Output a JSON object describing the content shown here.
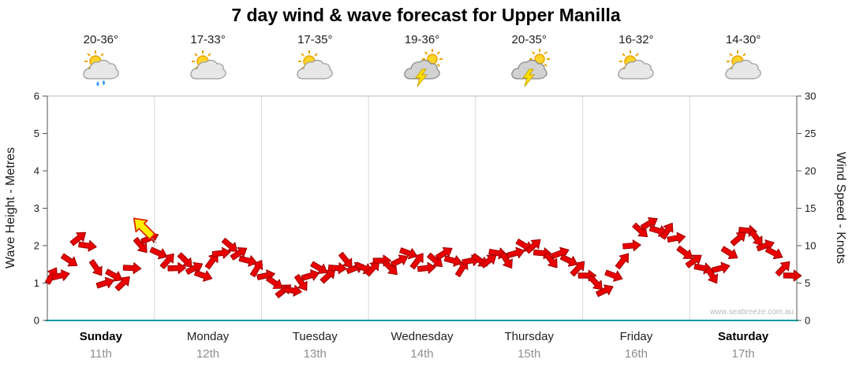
{
  "title": "7 day wind & wave forecast for Upper Manilla",
  "watermark": "www.seabreeze.com.au",
  "days": [
    {
      "name": "Sunday",
      "date": "11th",
      "temp": "20-36°",
      "icon": "sun-cloud-rain",
      "bold": true
    },
    {
      "name": "Monday",
      "date": "12th",
      "temp": "17-33°",
      "icon": "sun-cloud",
      "bold": false
    },
    {
      "name": "Tuesday",
      "date": "13th",
      "temp": "17-35°",
      "icon": "sun-cloud",
      "bold": false
    },
    {
      "name": "Wednesday",
      "date": "14th",
      "temp": "19-36°",
      "icon": "storm",
      "bold": false
    },
    {
      "name": "Thursday",
      "date": "15th",
      "temp": "20-35°",
      "icon": "storm",
      "bold": false
    },
    {
      "name": "Friday",
      "date": "16th",
      "temp": "16-32°",
      "icon": "sun-cloud",
      "bold": false
    },
    {
      "name": "Saturday",
      "date": "17th",
      "temp": "14-30°",
      "icon": "sun-cloud",
      "bold": true
    }
  ],
  "chart_data": {
    "type": "scatter",
    "title": "7 day wind & wave forecast for Upper Manilla",
    "marker": "wind-direction-arrow",
    "legend": "none",
    "grid": "vertical-day-boundaries",
    "x_total_hours": 168,
    "x_categories": [
      "Sunday 11th",
      "Monday 12th",
      "Tuesday 13th",
      "Wednesday 14th",
      "Thursday 15th",
      "Friday 16th",
      "Saturday 17th"
    ],
    "left_axis": {
      "label": "Wave Height - Metres",
      "min": 0,
      "max": 6,
      "tick_step": 1
    },
    "right_axis": {
      "label": "Wind Speed - Knots",
      "min": 0,
      "max": 30,
      "tick_step": 5
    },
    "axis_colors": {
      "bottom": "#009a9a",
      "side": "#555555",
      "grid": "#d7d7d7"
    },
    "series": [
      {
        "name": "Wind speed (knots)",
        "color": "#e80000",
        "outline_color": "#9e0000",
        "x_start_hour": 1,
        "x_step_hours": 2,
        "values": [
          6,
          6,
          8,
          11,
          10,
          7,
          5,
          6,
          5,
          7,
          10,
          11,
          9,
          8,
          7,
          8,
          7,
          6,
          8,
          9,
          10,
          9,
          8,
          7,
          6,
          5,
          4,
          4,
          5,
          6,
          7,
          6,
          7,
          8,
          7,
          7,
          7,
          8,
          7,
          8,
          9,
          8,
          7,
          8,
          9,
          8,
          7,
          8,
          8,
          8,
          9,
          8,
          9,
          10,
          10,
          9,
          8,
          9,
          8,
          7,
          6,
          5,
          4,
          6,
          8,
          10,
          12,
          13,
          12,
          12,
          11,
          9,
          8,
          7,
          6,
          7,
          9,
          11,
          12,
          11,
          10,
          9,
          7,
          6
        ],
        "directions_deg": [
          -60,
          -13,
          34,
          -39,
          8,
          55,
          -18,
          29,
          -44,
          3,
          50,
          -23,
          24,
          -49,
          -2,
          45,
          -28,
          19,
          -54,
          -7,
          40,
          -33,
          14,
          -59,
          -12,
          35,
          -38,
          9,
          56,
          -17,
          30,
          -43,
          4,
          51,
          -22,
          25,
          -48,
          -1,
          46,
          -27,
          20,
          -53,
          -6,
          41,
          -32,
          15,
          -58,
          -11,
          36,
          -37,
          10,
          57,
          -16,
          31,
          -42,
          5,
          52,
          -21,
          26,
          -47,
          0,
          47,
          -26,
          21,
          -52,
          -5,
          42,
          -31,
          16,
          -57,
          -10,
          37,
          -36,
          11,
          58,
          -15,
          32,
          -41,
          6,
          53,
          -20,
          27,
          -46,
          1
        ]
      }
    ],
    "annotation": {
      "type": "highlighted-arrow",
      "color": "#ffee00",
      "outline_color": "#dd2200",
      "x_hour": 21.5,
      "knots": 12.4,
      "direction_deg": 225,
      "pointer_to": {
        "x_hour": 24.5,
        "knots": 10.3
      }
    }
  }
}
